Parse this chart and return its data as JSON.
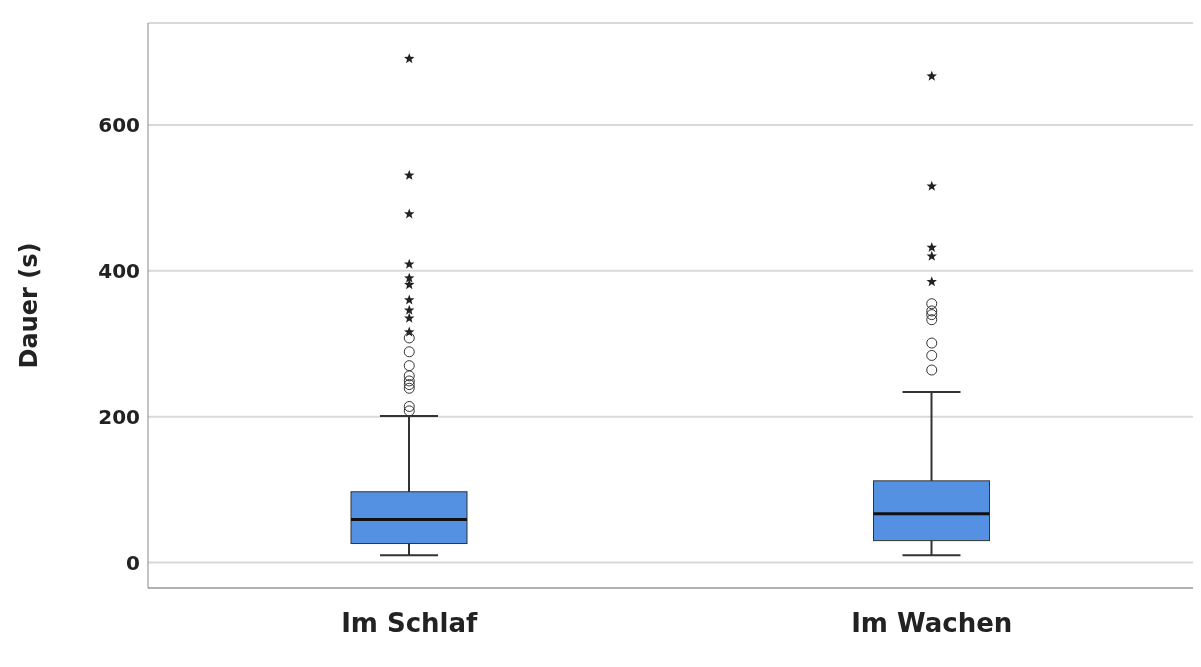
{
  "chart_data": {
    "type": "box",
    "ylabel": "Dauer (s)",
    "categories": [
      "Im Schlaf",
      "Im Wachen"
    ],
    "boxes": [
      {
        "low": 10,
        "q1": 26,
        "median": 59,
        "q3": 97,
        "high": 201,
        "outliers": [
          691,
          531,
          478,
          409,
          390,
          381,
          360,
          346,
          335,
          316,
          308,
          289,
          270,
          256,
          249,
          244,
          239,
          214,
          208
        ]
      },
      {
        "low": 10,
        "q1": 30,
        "median": 67,
        "q3": 112,
        "high": 234,
        "outliers": [
          667,
          516,
          432,
          420,
          385,
          355,
          345,
          340,
          333,
          301,
          284,
          264
        ]
      }
    ],
    "color": "#5591e3",
    "ylim": [
      -35,
      740
    ],
    "yticks": [
      0,
      200,
      400,
      600
    ],
    "grid": "y"
  }
}
